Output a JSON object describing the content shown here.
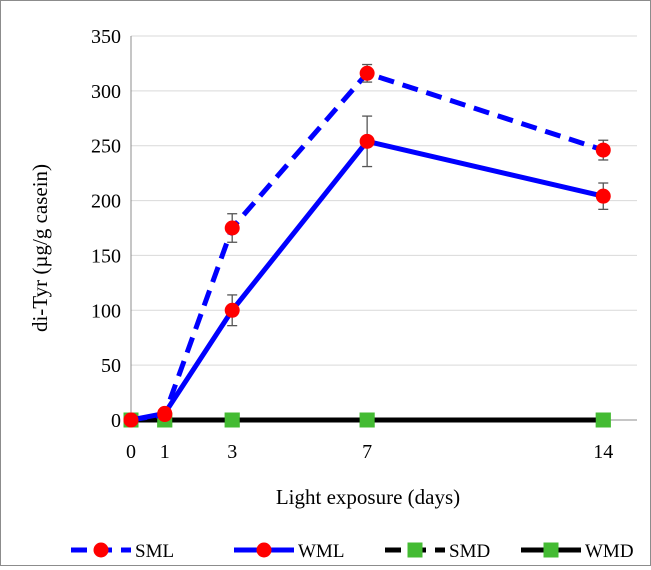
{
  "chart_data": {
    "type": "line",
    "title": "",
    "xlabel": "Light exposure (days)",
    "ylabel": "di-Tyr (µg/g casein)",
    "x": [
      0,
      1,
      3,
      7,
      14
    ],
    "x_ticks": [
      "0",
      "1",
      "3",
      "7",
      "14"
    ],
    "y_ticks": [
      "0",
      "50",
      "100",
      "150",
      "200",
      "250",
      "300",
      "350"
    ],
    "xlim": [
      0,
      15
    ],
    "ylim": [
      0,
      350
    ],
    "grid": "horizontal",
    "legend_position": "bottom",
    "series": [
      {
        "name": "SML",
        "values": [
          0,
          5,
          175,
          316,
          246
        ],
        "error": [
          0,
          2,
          13,
          8,
          9
        ],
        "color": "#0000ff",
        "line_style": "dashed",
        "marker": "circle",
        "marker_color": "#ff0000"
      },
      {
        "name": "WML",
        "values": [
          0,
          6,
          100,
          254,
          204
        ],
        "error": [
          0,
          2,
          14,
          23,
          12
        ],
        "color": "#0000ff",
        "line_style": "solid",
        "marker": "circle",
        "marker_color": "#ff0000"
      },
      {
        "name": "SMD",
        "values": [
          0,
          0,
          0,
          0,
          0
        ],
        "color": "#000000",
        "line_style": "dashed",
        "marker": "square",
        "marker_color": "#44bb33"
      },
      {
        "name": "WMD",
        "values": [
          0,
          0,
          0,
          0,
          0
        ],
        "color": "#000000",
        "line_style": "solid",
        "marker": "square",
        "marker_color": "#44bb33"
      }
    ]
  }
}
